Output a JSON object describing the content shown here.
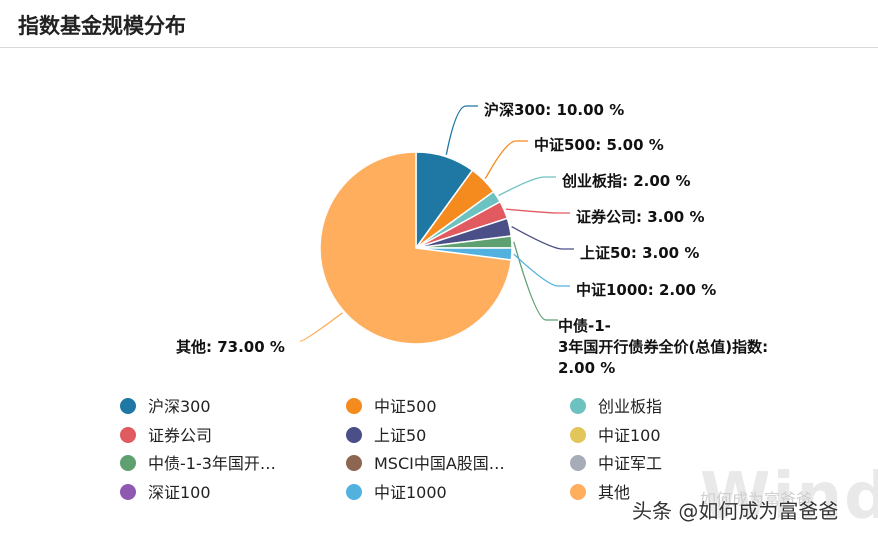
{
  "title": "指数基金规模分布",
  "chart_data": {
    "type": "pie",
    "title": "指数基金规模分布",
    "slices": [
      {
        "name": "沪深300",
        "label": "沪深300: 10.00 %",
        "value": 10.0,
        "color": "#1f77a4"
      },
      {
        "name": "中证500",
        "label": "中证500: 5.00 %",
        "value": 5.0,
        "color": "#f58a1f"
      },
      {
        "name": "创业板指",
        "label": "创业板指: 2.00 %",
        "value": 2.0,
        "color": "#6cc2c0"
      },
      {
        "name": "证券公司",
        "label": "证券公司: 3.00 %",
        "value": 3.0,
        "color": "#e05a5f"
      },
      {
        "name": "上证50",
        "label": "上证50: 3.00 %",
        "value": 3.0,
        "color": "#4b4f88"
      },
      {
        "name": "中债-1-3年国开行债券全价(总值)指数",
        "label_lines": [
          "中债-1-",
          "3年国开行债券全价(总值)指数:",
          "2.00 %"
        ],
        "value": 2.0,
        "color": "#5ea070"
      },
      {
        "name": "中证1000",
        "label": "中证1000: 2.00 %",
        "value": 2.0,
        "color": "#53b1e0"
      },
      {
        "name": "其他",
        "label": "其他: 73.00 %",
        "value": 73.0,
        "color": "#ffae5e"
      }
    ],
    "legend": {
      "placement": "bottom",
      "items": [
        {
          "label": "沪深300",
          "color": "#1f77a4"
        },
        {
          "label": "中证500",
          "color": "#f58a1f"
        },
        {
          "label": "创业板指",
          "color": "#6cc2c0"
        },
        {
          "label": "证券公司",
          "color": "#e05a5f"
        },
        {
          "label": "上证50",
          "color": "#4b4f88"
        },
        {
          "label": "中证100",
          "color": "#e2c65a"
        },
        {
          "label": "中债-1-3年国开…",
          "color": "#5ea070"
        },
        {
          "label": "MSCI中国A股国…",
          "color": "#8c6650"
        },
        {
          "label": "中证军工",
          "color": "#a6adb8"
        },
        {
          "label": "深证100",
          "color": "#8e5ab1"
        },
        {
          "label": "中证1000",
          "color": "#53b1e0"
        },
        {
          "label": "其他",
          "color": "#ffae5e"
        }
      ]
    }
  },
  "watermark": {
    "text": "头条 @如何成为富爸爸",
    "faded_text": "Wind",
    "faded_caption": "如何成为富爸爸"
  }
}
